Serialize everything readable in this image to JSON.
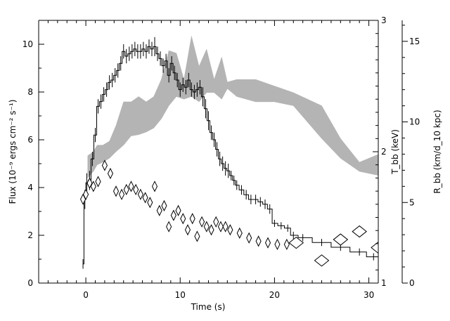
{
  "chart_data": {
    "type": "line",
    "xlabel": "Time (s)",
    "ylabel": "Flux (10⁻⁹ ergs cm⁻² s⁻¹)",
    "y2label": "T_bb (keV)",
    "y3label": "R_bb (km/d_10 kpc)",
    "xlim": [
      -5,
      31
    ],
    "ylim": [
      0,
      11
    ],
    "y2lim": [
      1,
      3
    ],
    "y3lim": [
      0,
      16.3
    ],
    "x_ticks": [
      0,
      10,
      20,
      30
    ],
    "y_ticks": [
      0,
      2,
      4,
      6,
      8,
      10
    ],
    "y2_ticks": [
      1,
      2,
      3
    ],
    "y3_ticks": [
      0,
      5,
      10,
      15
    ],
    "grid": false,
    "series": [
      {
        "kind": "flux-step-with-errorbars",
        "x": [
          -0.3,
          -0.1,
          0.1,
          0.4,
          0.7,
          1.0,
          1.3,
          1.6,
          1.9,
          2.2,
          2.5,
          2.8,
          3.1,
          3.4,
          3.7,
          4.0,
          4.3,
          4.6,
          4.9,
          5.2,
          5.5,
          5.8,
          6.1,
          6.4,
          6.7,
          7.0,
          7.3,
          7.6,
          7.9,
          8.2,
          8.5,
          8.8,
          9.1,
          9.4,
          9.7,
          10.0,
          10.3,
          10.6,
          10.9,
          11.2,
          11.5,
          11.8,
          12.1,
          12.4,
          12.7,
          13.0,
          13.3,
          13.6,
          13.9,
          14.2,
          14.5,
          14.8,
          15.1,
          15.4,
          15.7,
          16.0,
          16.5,
          17.0,
          17.5,
          18.0,
          18.5,
          19.0,
          19.5,
          20.0,
          20.7,
          21.4,
          22.0,
          23.0,
          25.0,
          27.0,
          29.0,
          30.5
        ],
        "y": [
          0.8,
          3.5,
          4.2,
          4.3,
          5.2,
          6.2,
          7.4,
          7.6,
          7.9,
          8.1,
          8.4,
          8.5,
          8.7,
          8.9,
          9.2,
          9.7,
          9.5,
          9.6,
          9.7,
          9.8,
          9.7,
          9.7,
          9.8,
          9.7,
          9.9,
          9.8,
          9.9,
          9.6,
          9.4,
          9.1,
          9.3,
          8.7,
          9.2,
          8.8,
          8.5,
          8.1,
          8.3,
          8.2,
          8.5,
          8.1,
          8.0,
          8.1,
          8.2,
          7.8,
          7.3,
          6.8,
          6.3,
          6.0,
          5.6,
          5.2,
          5.0,
          4.8,
          4.7,
          4.5,
          4.3,
          4.1,
          3.9,
          3.7,
          3.5,
          3.5,
          3.4,
          3.3,
          3.1,
          2.5,
          2.4,
          2.3,
          2.0,
          1.9,
          1.7,
          1.5,
          1.3,
          1.1
        ],
        "err": [
          0.2,
          0.4,
          0.4,
          0.4,
          0.3,
          0.3,
          0.3,
          0.3,
          0.3,
          0.3,
          0.3,
          0.3,
          0.3,
          0.3,
          0.3,
          0.3,
          0.3,
          0.3,
          0.3,
          0.3,
          0.3,
          0.3,
          0.3,
          0.3,
          0.3,
          0.3,
          0.4,
          0.3,
          0.3,
          0.3,
          0.3,
          0.3,
          0.3,
          0.3,
          0.3,
          0.3,
          0.3,
          0.3,
          0.3,
          0.3,
          0.3,
          0.3,
          0.3,
          0.4,
          0.4,
          0.4,
          0.3,
          0.3,
          0.3,
          0.3,
          0.3,
          0.3,
          0.3,
          0.2,
          0.2,
          0.2,
          0.2,
          0.2,
          0.2,
          0.2,
          0.2,
          0.2,
          0.2,
          0.15,
          0.15,
          0.15,
          0.15,
          0.15,
          0.15,
          0.15,
          0.15,
          0.15
        ]
      },
      {
        "kind": "temperature-band",
        "axis": "y2",
        "x": [
          0.2,
          0.8,
          1.2,
          1.8,
          2.5,
          3.2,
          4.0,
          4.8,
          5.6,
          6.4,
          7.2,
          8.0,
          8.8,
          9.6,
          10.4,
          11.2,
          12.0,
          12.8,
          13.6,
          14.4,
          15.0,
          16.0,
          18.0,
          20.0,
          22.0,
          25.0,
          27.0,
          29.0,
          31.0
        ],
        "y_low": [
          1.8,
          1.85,
          1.9,
          1.92,
          1.95,
          2.0,
          2.05,
          2.12,
          2.13,
          2.15,
          2.18,
          2.25,
          2.35,
          2.42,
          2.4,
          2.42,
          2.38,
          2.45,
          2.45,
          2.4,
          2.48,
          2.42,
          2.38,
          2.38,
          2.35,
          2.1,
          1.95,
          1.85,
          1.82
        ],
        "y_high": [
          1.97,
          2.0,
          2.05,
          2.05,
          2.08,
          2.2,
          2.38,
          2.38,
          2.42,
          2.38,
          2.42,
          2.55,
          2.77,
          2.75,
          2.55,
          2.88,
          2.65,
          2.78,
          2.55,
          2.72,
          2.53,
          2.55,
          2.55,
          2.5,
          2.45,
          2.35,
          2.1,
          1.92,
          1.98
        ]
      },
      {
        "kind": "radius-diamonds",
        "axis": "y3",
        "x": [
          -0.3,
          0.0,
          0.4,
          0.8,
          1.3,
          2.0,
          2.6,
          3.2,
          3.8,
          4.3,
          4.8,
          5.3,
          5.8,
          6.3,
          6.8,
          7.3,
          7.8,
          8.3,
          8.8,
          9.3,
          9.8,
          10.3,
          10.8,
          11.3,
          11.8,
          12.3,
          12.8,
          13.3,
          13.8,
          14.3,
          14.8,
          15.3,
          16.3,
          17.3,
          18.3,
          19.3,
          20.3,
          21.3,
          22.3,
          25.0,
          27.0,
          29.0,
          31.0
        ],
        "y": [
          5.2,
          5.5,
          6.2,
          6.0,
          6.3,
          7.3,
          6.8,
          5.7,
          5.5,
          5.8,
          6.0,
          5.8,
          5.5,
          5.3,
          5.0,
          6.0,
          4.5,
          4.8,
          3.5,
          4.2,
          4.5,
          4.0,
          3.3,
          4.0,
          2.9,
          3.8,
          3.5,
          3.3,
          3.8,
          3.5,
          3.5,
          3.3,
          3.1,
          2.8,
          2.6,
          2.5,
          2.4,
          2.4,
          2.5,
          1.4,
          2.7,
          3.2,
          2.2
        ]
      }
    ]
  }
}
